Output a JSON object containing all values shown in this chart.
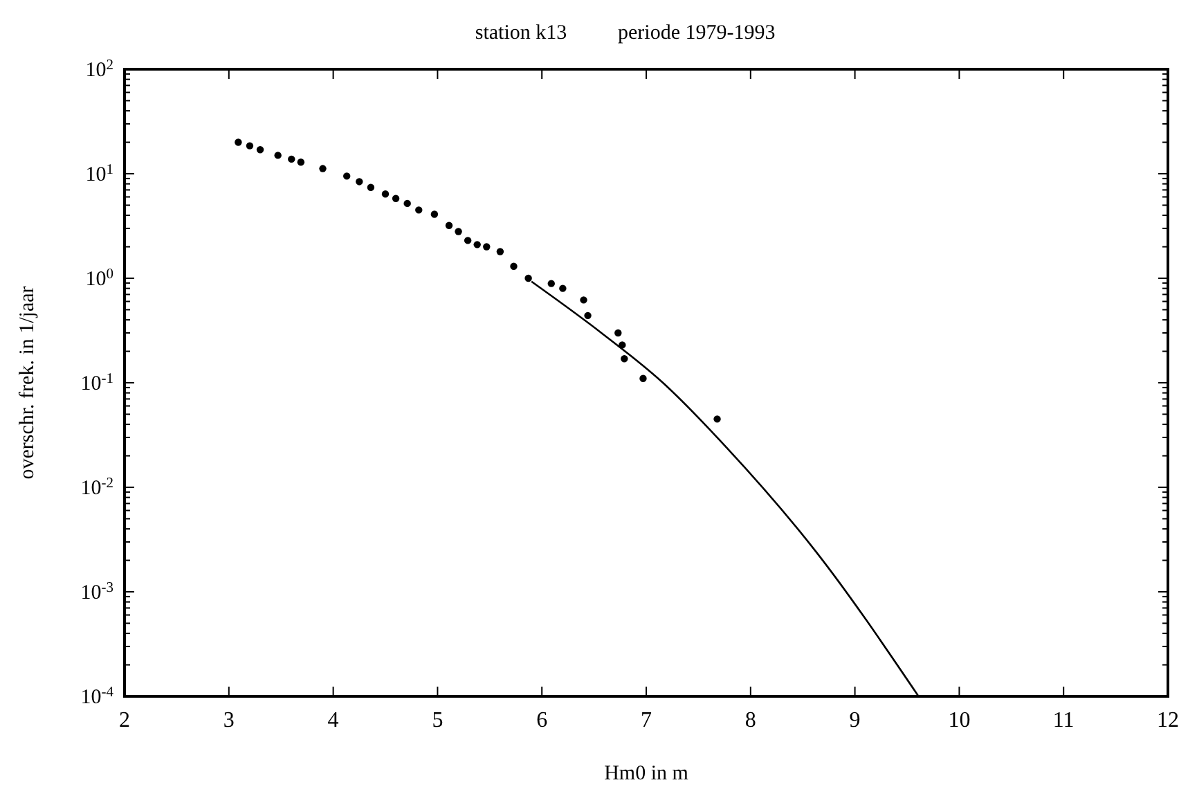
{
  "chart_data": {
    "type": "scatter",
    "title": "station k13",
    "subtitle": "periode 1979-1993",
    "xlabel": "Hm0 in m",
    "ylabel": "overschr. frek. in 1/jaar",
    "log": "y",
    "grid": false,
    "xlim": [
      2,
      12
    ],
    "xticks": [
      2,
      3,
      4,
      5,
      6,
      7,
      8,
      9,
      10,
      11,
      12
    ],
    "ylim": [
      0.0001,
      100
    ],
    "yticks": [
      {
        "value": 0.0001,
        "label": "10$^{-4}$"
      },
      {
        "value": 0.001,
        "label": "10$^{-3}$"
      },
      {
        "value": 0.01,
        "label": "10$^{-2}$"
      },
      {
        "value": 0.1,
        "label": "10$^{-1}$"
      },
      {
        "value": 1,
        "label": "10$^{0}$"
      },
      {
        "value": 10,
        "label": "10$^{1}$"
      },
      {
        "value": 100,
        "label": "10$^{2}$"
      }
    ],
    "series": [
      {
        "color": "#000000",
        "marker": "circle",
        "x": [
          3.09,
          3.2,
          3.3,
          3.47,
          3.6,
          3.69,
          3.9,
          4.13,
          4.25,
          4.36,
          4.5,
          4.6,
          4.71,
          4.82,
          4.97,
          5.11,
          5.2,
          5.29,
          5.38,
          5.47,
          5.6,
          5.73,
          5.87,
          6.09,
          6.2,
          6.4,
          6.44,
          6.73,
          6.77,
          6.79,
          6.97,
          7.68
        ],
        "values": [
          20,
          18.5,
          17,
          15,
          13.8,
          12.9,
          11.2,
          9.5,
          8.4,
          7.4,
          6.4,
          5.8,
          5.2,
          4.5,
          4.1,
          3.2,
          2.8,
          2.3,
          2.1,
          2.0,
          1.8,
          1.3,
          1.0,
          0.89,
          0.8,
          0.62,
          0.44,
          0.3,
          0.23,
          0.17,
          0.11,
          0.045
        ]
      },
      {
        "type": "line",
        "color": "#000000",
        "marker": "none",
        "line_style": "solid",
        "x": [
          5.9,
          6.57,
          7.16,
          7.77,
          8.63,
          9.61
        ],
        "values": [
          0.93,
          0.3,
          0.1,
          0.024,
          0.0024,
          0.0001
        ]
      }
    ]
  }
}
